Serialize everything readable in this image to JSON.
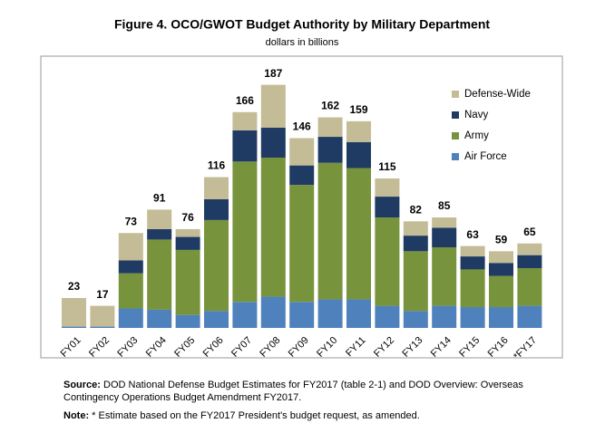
{
  "chart_data": {
    "type": "stacked_bar",
    "title": "Figure 4. OCO/GWOT Budget Authority by Military Department",
    "subtitle": "dollars in billions",
    "categories": [
      "FY01",
      "FY02",
      "FY03",
      "FY04",
      "FY05",
      "FY06",
      "FY07",
      "FY08",
      "FY09",
      "FY10",
      "FY11",
      "FY12",
      "FY13",
      "FY14",
      "FY15",
      "FY16",
      "*FY17"
    ],
    "series": [
      {
        "name": "Air Force",
        "color": "#4f81bd",
        "values": [
          1,
          1,
          15,
          14,
          10,
          13,
          20,
          24,
          20,
          22,
          22,
          17,
          13,
          17,
          16,
          16,
          17
        ]
      },
      {
        "name": "Army",
        "color": "#77933c",
        "values": [
          0,
          0,
          27,
          54,
          50,
          70,
          108,
          107,
          90,
          105,
          101,
          68,
          46,
          45,
          29,
          24,
          29
        ]
      },
      {
        "name": "Navy",
        "color": "#1f3b63",
        "values": [
          0,
          0,
          10,
          8,
          10,
          16,
          24,
          23,
          15,
          20,
          20,
          16,
          12,
          15,
          10,
          10,
          10
        ]
      },
      {
        "name": "Defense-Wide",
        "color": "#c4bc96",
        "values": [
          22,
          16,
          21,
          15,
          6,
          17,
          14,
          33,
          21,
          15,
          16,
          14,
          11,
          8,
          8,
          9,
          9
        ]
      }
    ],
    "totals": [
      23,
      17,
      73,
      91,
      76,
      116,
      166,
      187,
      146,
      162,
      159,
      115,
      82,
      85,
      63,
      59,
      65
    ],
    "ylim": [
      0,
      200
    ],
    "legend": "upper right",
    "source_label": "Source:",
    "source": "DOD National Defense Budget Estimates for FY2017 (table 2-1) and DOD Overview: Overseas Contingency Operations Budget Amendment FY2017.",
    "note_label": "Note:",
    "note": "* Estimate based on the FY2017 President's budget request, as amended."
  }
}
